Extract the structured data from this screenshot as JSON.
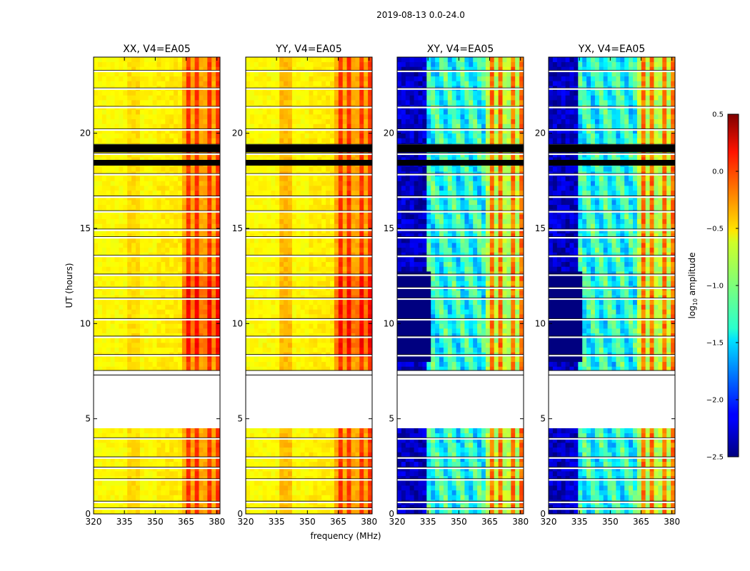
{
  "figure": {
    "suptitle": "2019-08-13 0.0-24.0"
  },
  "chart_data": {
    "type": "heatmap",
    "title": "2019-08-13 0.0-24.0",
    "xlabel": "frequency (MHz)",
    "ylabel": "UT (hours)",
    "xlim": [
      320,
      381.5
    ],
    "ylim": [
      0,
      24
    ],
    "x_ticks": [
      320,
      335,
      350,
      365,
      380
    ],
    "y_ticks": [
      0,
      5,
      10,
      15,
      20
    ],
    "panels": [
      {
        "title": "XX, V4=EA05",
        "pol": "XX",
        "kind": "auto"
      },
      {
        "title": "YY, V4=EA05",
        "pol": "YY",
        "kind": "auto"
      },
      {
        "title": "XY, V4=EA05",
        "pol": "XY",
        "kind": "cross"
      },
      {
        "title": "YX, V4=EA05",
        "pol": "YX",
        "kind": "cross"
      }
    ],
    "colorbar": {
      "label": "log10 amplitude",
      "label_main": "log",
      "label_sub": "10",
      "label_rest": " amplitude",
      "range": [
        -2.5,
        0.5
      ],
      "ticks": [
        0.5,
        0.0,
        -0.5,
        -1.0,
        -1.5,
        -2.0,
        -2.5
      ],
      "tick_labels": [
        "0.5",
        "0.0",
        "−0.5",
        "−1.0",
        "−1.5",
        "−2.0",
        "−2.5"
      ],
      "colormap": "jet"
    },
    "data_gaps_ut": [
      [
        4.3,
        7.3
      ]
    ],
    "rfi_bands_mhz": [
      [
        364,
        366
      ],
      [
        369,
        371
      ],
      [
        374,
        376
      ],
      [
        378,
        380
      ]
    ],
    "flag_bands_ut": [
      [
        19.0,
        19.4
      ],
      [
        18.3,
        18.6
      ]
    ]
  }
}
